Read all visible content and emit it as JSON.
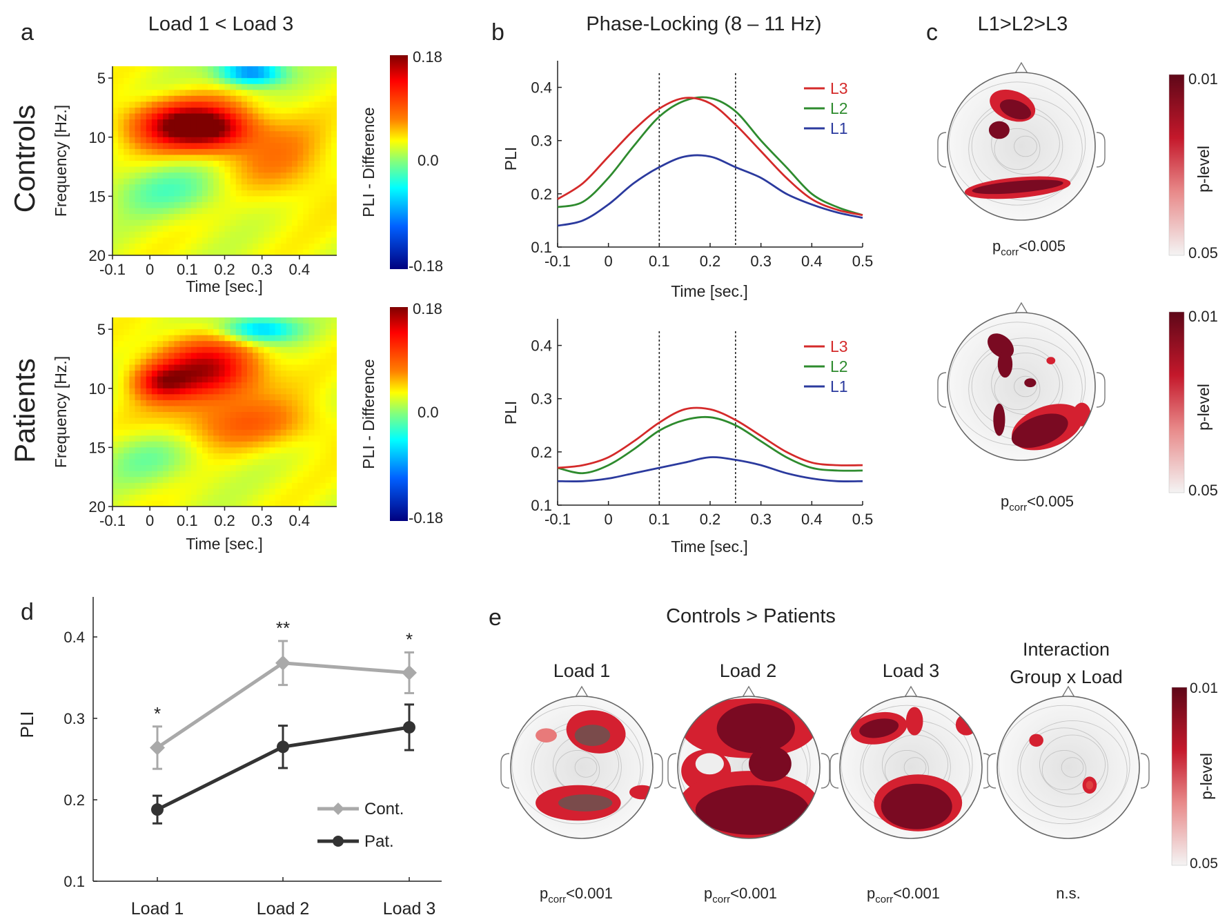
{
  "colors": {
    "L1": "#2b3a9e",
    "L2": "#2e8b2e",
    "L3": "#d42a2a",
    "cont": "#a9a9a9",
    "pat": "#333333",
    "plevel_dark": "#6e0b1f",
    "plevel_light": "#f0f0f0"
  },
  "panel_a": {
    "letter": "a",
    "title": "Load 1 < Load 3",
    "rows": [
      "Controls",
      "Patients"
    ],
    "ylabel": "Frequency [Hz.]",
    "xlabel": "Time [sec.]",
    "yticks": [
      "5",
      "10",
      "15",
      "20"
    ],
    "xticks": [
      "-0.1",
      "0",
      "0.1",
      "0.2",
      "0.3",
      "0.4"
    ],
    "colorbar": {
      "label": "PLI - Difference",
      "max": "0.18",
      "mid": "0.0",
      "min": "-0.18"
    }
  },
  "panel_b": {
    "letter": "b",
    "title": "Phase-Locking (8 – 11 Hz)",
    "ylabel": "PLI",
    "xlabel": "Time [sec.]",
    "yticks": [
      "0.1",
      "0.2",
      "0.3",
      "0.4"
    ],
    "xticks": [
      "-0.1",
      "0",
      "0.1",
      "0.2",
      "0.3",
      "0.4",
      "0.5"
    ],
    "legend": [
      "L3",
      "L2",
      "L1"
    ]
  },
  "panel_c": {
    "letter": "c",
    "title": "L1>L2>L3",
    "stat_top": {
      "p": "p",
      "sub": "corr",
      "rest": "<0.005"
    },
    "stat_bottom": {
      "p": "p",
      "sub": "corr",
      "rest": "<0.005"
    },
    "colorbar": {
      "label": "p-level",
      "top": "0.01",
      "bottom": "0.05"
    }
  },
  "panel_d": {
    "letter": "d",
    "ylabel": "PLI",
    "yticks": [
      "0.1",
      "0.2",
      "0.3",
      "0.4"
    ],
    "legend": [
      "Cont.",
      "Pat."
    ],
    "sig_marks": [
      "*",
      "**",
      "*"
    ]
  },
  "panel_e": {
    "letter": "e",
    "title": "Controls > Patients",
    "topos": [
      {
        "title1": "Load 1",
        "title2": "",
        "stat": {
          "p": "p",
          "sub": "corr",
          "rest": "<0.001"
        }
      },
      {
        "title1": "Load 2",
        "title2": "",
        "stat": {
          "p": "p",
          "sub": "corr",
          "rest": "<0.001"
        }
      },
      {
        "title1": "Load 3",
        "title2": "",
        "stat": {
          "p": "p",
          "sub": "corr",
          "rest": "<0.001"
        }
      },
      {
        "title1": "Interaction",
        "title2": "Group x Load",
        "stat": {
          "p": "",
          "sub": "",
          "rest": "n.s."
        }
      }
    ],
    "colorbar": {
      "label": "p-level",
      "top": "0.01",
      "bottom": "0.05"
    }
  },
  "chart_data": [
    {
      "type": "heatmap",
      "title": "Load 1 < Load 3",
      "group": "Controls",
      "xlabel": "Time [sec.]",
      "ylabel": "Frequency [Hz.]",
      "xlim": [
        -0.1,
        0.5
      ],
      "ylim": [
        4,
        20
      ],
      "clim": [
        -0.18,
        0.18
      ],
      "blobs": [
        {
          "t": 0.1,
          "f": 9,
          "st": 0.1,
          "sf": 1.4,
          "v": 0.16
        },
        {
          "t": 0.18,
          "f": 9.5,
          "st": 0.07,
          "sf": 1.2,
          "v": 0.05
        },
        {
          "t": 0.27,
          "f": 4.5,
          "st": 0.06,
          "sf": 0.8,
          "v": -0.13
        },
        {
          "t": 0.05,
          "f": 14.5,
          "st": 0.12,
          "sf": 1.5,
          "v": -0.04
        },
        {
          "t": 0.35,
          "f": 12,
          "st": 0.1,
          "sf": 2.5,
          "v": 0.04
        }
      ]
    },
    {
      "type": "heatmap",
      "title": "Load 1 < Load 3",
      "group": "Patients",
      "xlabel": "Time [sec.]",
      "ylabel": "Frequency [Hz.]",
      "xlim": [
        -0.1,
        0.5
      ],
      "ylim": [
        4,
        20
      ],
      "clim": [
        -0.18,
        0.18
      ],
      "blobs": [
        {
          "t": 0.15,
          "f": 8.5,
          "st": 0.1,
          "sf": 1.8,
          "v": 0.13
        },
        {
          "t": 0.03,
          "f": 9.5,
          "st": 0.05,
          "sf": 1.0,
          "v": 0.08
        },
        {
          "t": 0.29,
          "f": 5,
          "st": 0.07,
          "sf": 0.8,
          "v": -0.1
        },
        {
          "t": 0.25,
          "f": 13,
          "st": 0.15,
          "sf": 1.5,
          "v": 0.05
        },
        {
          "t": 0.0,
          "f": 16,
          "st": 0.1,
          "sf": 1.6,
          "v": -0.03
        }
      ]
    },
    {
      "type": "line",
      "title": "Phase-Locking (8 – 11 Hz)",
      "group": "Controls",
      "xlabel": "Time [sec.]",
      "ylabel": "PLI",
      "xlim": [
        -0.1,
        0.5
      ],
      "ylim": [
        0.1,
        0.45
      ],
      "vlines": [
        0.1,
        0.25
      ],
      "x": [
        -0.1,
        -0.05,
        0.0,
        0.05,
        0.1,
        0.15,
        0.2,
        0.25,
        0.3,
        0.35,
        0.4,
        0.45,
        0.5
      ],
      "series": [
        {
          "name": "L3",
          "values": [
            0.19,
            0.22,
            0.27,
            0.32,
            0.36,
            0.38,
            0.37,
            0.33,
            0.28,
            0.23,
            0.19,
            0.17,
            0.16
          ]
        },
        {
          "name": "L2",
          "values": [
            0.175,
            0.185,
            0.23,
            0.29,
            0.345,
            0.375,
            0.38,
            0.355,
            0.3,
            0.25,
            0.2,
            0.175,
            0.16
          ]
        },
        {
          "name": "L1",
          "values": [
            0.14,
            0.15,
            0.18,
            0.22,
            0.25,
            0.27,
            0.27,
            0.25,
            0.23,
            0.2,
            0.18,
            0.165,
            0.155
          ]
        }
      ]
    },
    {
      "type": "line",
      "title": "",
      "group": "Patients",
      "xlabel": "Time [sec.]",
      "ylabel": "PLI",
      "xlim": [
        -0.1,
        0.5
      ],
      "ylim": [
        0.1,
        0.45
      ],
      "vlines": [
        0.1,
        0.25
      ],
      "x": [
        -0.1,
        -0.05,
        0.0,
        0.05,
        0.1,
        0.15,
        0.2,
        0.25,
        0.3,
        0.35,
        0.4,
        0.45,
        0.5
      ],
      "series": [
        {
          "name": "L3",
          "values": [
            0.17,
            0.175,
            0.19,
            0.22,
            0.255,
            0.28,
            0.28,
            0.26,
            0.23,
            0.2,
            0.18,
            0.175,
            0.175
          ]
        },
        {
          "name": "L2",
          "values": [
            0.17,
            0.16,
            0.175,
            0.205,
            0.24,
            0.26,
            0.265,
            0.25,
            0.22,
            0.19,
            0.17,
            0.165,
            0.165
          ]
        },
        {
          "name": "L1",
          "values": [
            0.145,
            0.145,
            0.15,
            0.16,
            0.17,
            0.18,
            0.19,
            0.185,
            0.175,
            0.16,
            0.15,
            0.145,
            0.145
          ]
        }
      ]
    },
    {
      "type": "line",
      "xlabel": "",
      "ylabel": "PLI",
      "ylim": [
        0.1,
        0.45
      ],
      "categories": [
        "Load 1",
        "Load 2",
        "Load 3"
      ],
      "series": [
        {
          "name": "Cont.",
          "values": [
            0.264,
            0.368,
            0.356
          ],
          "err": [
            0.026,
            0.027,
            0.025
          ]
        },
        {
          "name": "Pat.",
          "values": [
            0.188,
            0.265,
            0.289
          ],
          "err": [
            0.017,
            0.026,
            0.028
          ]
        }
      ],
      "annotations": [
        "*",
        "**",
        "*"
      ]
    }
  ]
}
